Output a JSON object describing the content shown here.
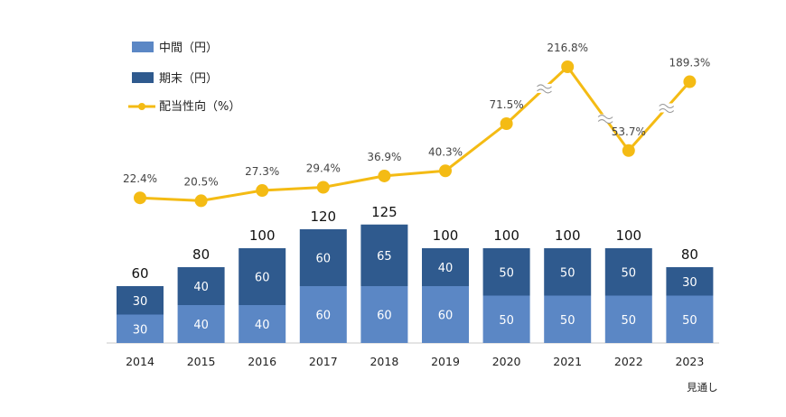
{
  "chart_data": {
    "type": "bar",
    "categories": [
      "2014",
      "2015",
      "2016",
      "2017",
      "2018",
      "2019",
      "2020",
      "2021",
      "2022",
      "2023"
    ],
    "category_note": {
      "category": "2023",
      "text": "見通し"
    },
    "series": [
      {
        "name": "中間（円）",
        "kind": "bar",
        "color": "#5B87C5",
        "values": [
          30,
          40,
          40,
          60,
          60,
          60,
          50,
          50,
          50,
          50
        ]
      },
      {
        "name": "期末（円）",
        "kind": "bar",
        "color": "#2F5A8E",
        "values": [
          30,
          40,
          60,
          60,
          65,
          40,
          50,
          50,
          50,
          30
        ]
      },
      {
        "name": "配当性向（%）",
        "kind": "line",
        "color": "#F4BB14",
        "values": [
          22.4,
          20.5,
          27.3,
          29.4,
          36.9,
          40.3,
          71.5,
          216.8,
          53.7,
          189.3
        ]
      }
    ],
    "totals": [
      60,
      80,
      100,
      120,
      125,
      100,
      100,
      100,
      100,
      80
    ],
    "segment_labels": {
      "interim": [
        "30",
        "40",
        "40",
        "60",
        "60",
        "60",
        "50",
        "50",
        "50",
        "50"
      ],
      "final": [
        "30",
        "40",
        "60",
        "60",
        "65",
        "40",
        "50",
        "50",
        "50",
        "30"
      ]
    },
    "total_labels": [
      "60",
      "80",
      "100",
      "120",
      "125",
      "100",
      "100",
      "100",
      "100",
      "80"
    ],
    "ratio_labels": [
      "22.4%",
      "20.5%",
      "27.3%",
      "29.4%",
      "36.9%",
      "40.3%",
      "71.5%",
      "216.8%",
      "53.7%",
      "189.3%"
    ],
    "stacked": true,
    "line_axis_break": true
  }
}
